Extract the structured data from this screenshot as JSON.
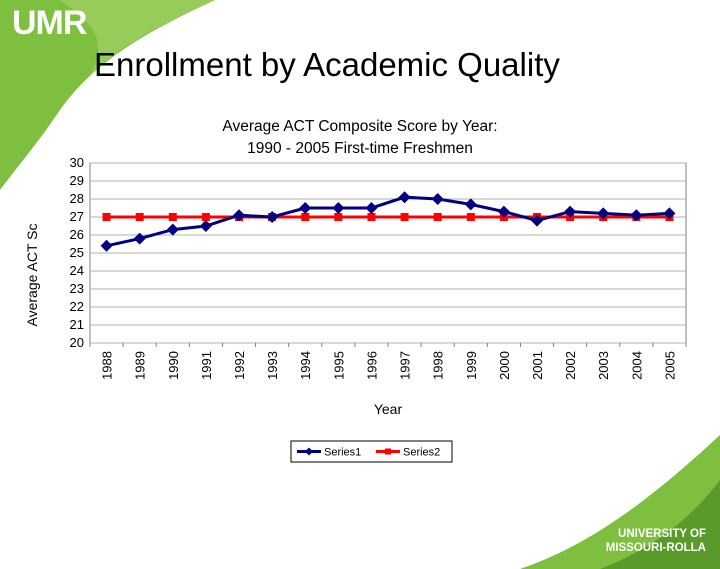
{
  "logo": "UMR",
  "slide_title": "Enrollment by Academic Quality",
  "university_logo": {
    "line1": "UNIVERSITY OF",
    "line2": "MISSOURI-ROLLA"
  },
  "colors": {
    "background_green": "#7fbf3f",
    "series1": "#000080",
    "series2": "#ff0000",
    "grid": "#b0b0b0"
  },
  "chart_data": {
    "type": "line",
    "title": "Average ACT Composite Score by Year:",
    "subtitle": "1990 - 2005 First-time Freshmen",
    "xlabel": "Year",
    "ylabel": "Average ACT Sc",
    "ylim": [
      20,
      30
    ],
    "yticks": [
      20,
      21,
      22,
      23,
      24,
      25,
      26,
      27,
      28,
      29,
      30
    ],
    "grid": true,
    "legend_position": "bottom",
    "categories": [
      "1988",
      "1989",
      "1990",
      "1991",
      "1992",
      "1993",
      "1994",
      "1995",
      "1996",
      "1997",
      "1998",
      "1999",
      "2000",
      "2001",
      "2002",
      "2003",
      "2004",
      "2005"
    ],
    "series": [
      {
        "name": "Series1",
        "color": "#000080",
        "marker": "diamond",
        "values": [
          25.4,
          25.8,
          26.3,
          26.5,
          27.1,
          27.0,
          27.5,
          27.5,
          27.5,
          28.1,
          28.0,
          27.7,
          27.3,
          26.8,
          27.3,
          27.2,
          27.1,
          27.2
        ]
      },
      {
        "name": "Series2",
        "color": "#ff0000",
        "marker": "square",
        "values": [
          27,
          27,
          27,
          27,
          27,
          27,
          27,
          27,
          27,
          27,
          27,
          27,
          27,
          27,
          27,
          27,
          27,
          27
        ]
      }
    ]
  }
}
